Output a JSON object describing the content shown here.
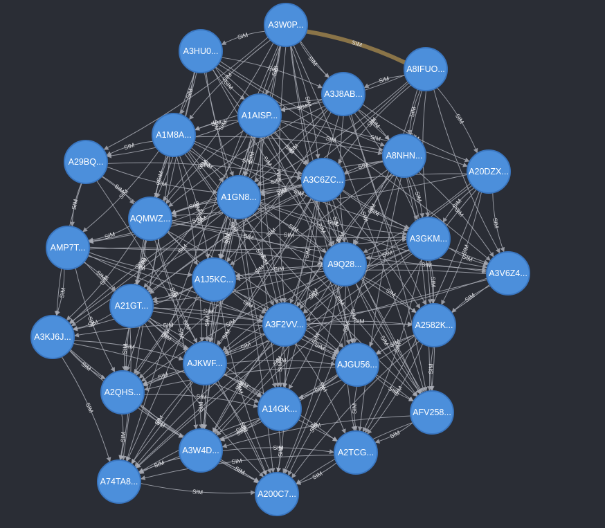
{
  "graph": {
    "edge_label": "SIM",
    "colors": {
      "background": "#2a2d35",
      "node_fill": "#4c8fdb",
      "node_stroke": "#3a76c0",
      "edge": "#a9acb5",
      "highlight_edge": "#8a7448",
      "label_text": "#ffffff"
    },
    "nodes": [
      {
        "id": "n1",
        "label": "A3W0P..."
      },
      {
        "id": "n2",
        "label": "A3HU0..."
      },
      {
        "id": "n3",
        "label": "A8IFUO..."
      },
      {
        "id": "n4",
        "label": "A3J8AB..."
      },
      {
        "id": "n5",
        "label": "A1AISP..."
      },
      {
        "id": "n6",
        "label": "A1M8A..."
      },
      {
        "id": "n7",
        "label": "A29BQ..."
      },
      {
        "id": "n8",
        "label": "A8NHN..."
      },
      {
        "id": "n9",
        "label": "A20DZX..."
      },
      {
        "id": "n10",
        "label": "A3C6ZC..."
      },
      {
        "id": "n11",
        "label": "A1GN8..."
      },
      {
        "id": "n12",
        "label": "AQMWZ..."
      },
      {
        "id": "n13",
        "label": "AMP7T..."
      },
      {
        "id": "n14",
        "label": "A3GKM..."
      },
      {
        "id": "n15",
        "label": "A9Q28..."
      },
      {
        "id": "n16",
        "label": "A3V6Z4..."
      },
      {
        "id": "n17",
        "label": "A1J5KC..."
      },
      {
        "id": "n18",
        "label": "A21GT..."
      },
      {
        "id": "n19",
        "label": "A3F2VV..."
      },
      {
        "id": "n20",
        "label": "A2582K..."
      },
      {
        "id": "n21",
        "label": "A3KJ6J..."
      },
      {
        "id": "n22",
        "label": "AJKWF..."
      },
      {
        "id": "n23",
        "label": "AJGU56..."
      },
      {
        "id": "n24",
        "label": "A2QHS..."
      },
      {
        "id": "n25",
        "label": "A14GK..."
      },
      {
        "id": "n26",
        "label": "AFV258..."
      },
      {
        "id": "n27",
        "label": "A3W4D..."
      },
      {
        "id": "n28",
        "label": "A2TCG..."
      },
      {
        "id": "n29",
        "label": "A74TA8..."
      },
      {
        "id": "n30",
        "label": "A200C7..."
      }
    ],
    "highlighted_edge": [
      "n1",
      "n3"
    ]
  }
}
